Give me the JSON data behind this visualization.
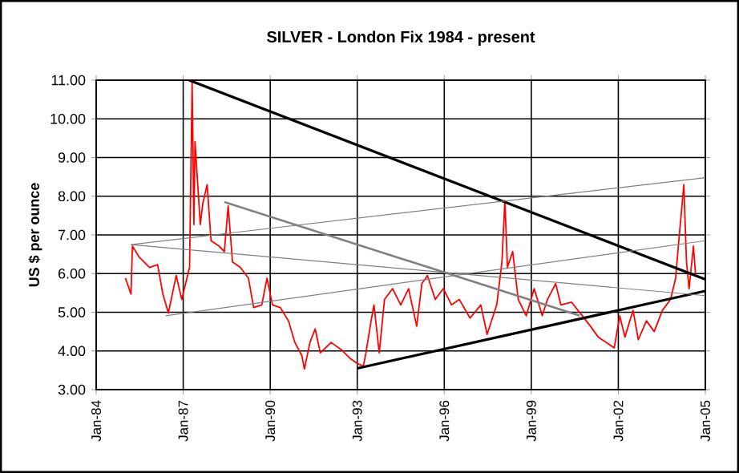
{
  "chart_data": {
    "type": "line",
    "title": "SILVER  -  London Fix  1984  - present",
    "ylabel": "US $ per ounce",
    "xlim": [
      "1984-01",
      "2005-01"
    ],
    "xticks": [
      {
        "value": "1984-01",
        "label": "Jan-84"
      },
      {
        "value": "1987-01",
        "label": "Jan-87"
      },
      {
        "value": "1990-01",
        "label": "Jan-90"
      },
      {
        "value": "1993-01",
        "label": "Jan-93"
      },
      {
        "value": "1996-01",
        "label": "Jan-96"
      },
      {
        "value": "1999-01",
        "label": "Jan-99"
      },
      {
        "value": "2002-01",
        "label": "Jan-02"
      },
      {
        "value": "2005-01",
        "label": "Jan-05"
      }
    ],
    "ylim": [
      3,
      11
    ],
    "yticks": [
      {
        "value": 3,
        "label": "3.00"
      },
      {
        "value": 4,
        "label": "4.00"
      },
      {
        "value": 5,
        "label": "5.00"
      },
      {
        "value": 6,
        "label": "6.00"
      },
      {
        "value": 7,
        "label": "7.00"
      },
      {
        "value": 8,
        "label": "8.00"
      },
      {
        "value": 9,
        "label": "9.00"
      },
      {
        "value": 10,
        "label": "10.00"
      },
      {
        "value": 11,
        "label": "11.00"
      }
    ],
    "grid": true,
    "series": [
      {
        "color": "#ff0000",
        "x": [
          "1985-01-04",
          "1985-03-13",
          "1985-04-01",
          "1985-06-20",
          "1985-11-03",
          "1986-02-14",
          "1986-04-19",
          "1986-06-27",
          "1986-10-04",
          "1986-12-13",
          "1987-03-20",
          "1987-04-22",
          "1987-05-14",
          "1987-05-28",
          "1987-08-03",
          "1987-09-05",
          "1987-10-29",
          "1987-12-16",
          "1988-03-27",
          "1988-06-02",
          "1988-07-19",
          "1988-09-13",
          "1988-12-20",
          "1989-04-01",
          "1989-06-05",
          "1989-09-16",
          "1989-11-21",
          "1990-01-29",
          "1990-05-07",
          "1990-08-17",
          "1990-11-07",
          "1991-02-03",
          "1991-03-05",
          "1991-05-14",
          "1991-07-19",
          "1991-09-23",
          "1992-02-07",
          "1992-06-20",
          "1992-10-01",
          "1993-01-08",
          "1993-03-16",
          "1993-04-19",
          "1993-06-23",
          "1993-07-29",
          "1993-10-04",
          "1993-12-09",
          "1994-03-20",
          "1994-07-01",
          "1994-10-08",
          "1995-01-19",
          "1995-03-23",
          "1995-06-02",
          "1995-09-09",
          "1995-12-20",
          "1996-04-01",
          "1996-07-08",
          "1996-11-21",
          "1997-04-04",
          "1997-06-23",
          "1997-10-22",
          "1997-12-27",
          "1998-02-03",
          "1998-03-05",
          "1998-05-10",
          "1998-07-19",
          "1998-10-29",
          "1999-02-07",
          "1999-05-17",
          "1999-07-22",
          "1999-11-03",
          "2000-01-08",
          "2000-05-21",
          "2000-10-04",
          "2001-01-15",
          "2001-04-22",
          "2001-08-03",
          "2001-11-10",
          "2002-01-19",
          "2002-03-23",
          "2002-07-04",
          "2002-09-09",
          "2002-12-20",
          "2003-03-27",
          "2003-07-08",
          "2003-10-19",
          "2003-12-23",
          "2004-01-26",
          "2004-04-04",
          "2004-05-07",
          "2004-06-09",
          "2004-08-03",
          "2004-08-28"
        ],
        "values": [
          5.88,
          5.47,
          6.71,
          6.44,
          6.16,
          6.23,
          5.47,
          4.98,
          5.95,
          5.33,
          6.16,
          10.93,
          7.27,
          9.41,
          7.27,
          7.82,
          8.3,
          6.85,
          6.71,
          6.57,
          7.75,
          6.3,
          6.16,
          5.88,
          5.12,
          5.19,
          5.88,
          5.19,
          5.12,
          4.78,
          4.22,
          3.88,
          3.53,
          4.22,
          4.57,
          3.95,
          4.22,
          4.02,
          3.81,
          3.67,
          3.6,
          3.95,
          4.78,
          5.19,
          3.95,
          5.33,
          5.61,
          5.19,
          5.61,
          4.64,
          5.74,
          5.95,
          5.33,
          5.61,
          5.19,
          5.33,
          4.85,
          5.19,
          4.43,
          5.19,
          6.3,
          7.89,
          6.16,
          6.57,
          5.33,
          4.91,
          5.61,
          4.91,
          5.33,
          5.74,
          5.19,
          5.26,
          4.91,
          4.64,
          4.36,
          4.22,
          4.08,
          4.91,
          4.36,
          5.05,
          4.29,
          4.78,
          4.5,
          5.05,
          5.33,
          5.88,
          6.71,
          8.3,
          6.3,
          5.61,
          6.71,
          6.02
        ]
      },
      {
        "color": "#000000",
        "x": [
          "1987-03-13",
          "2005-01"
        ],
        "values": [
          11.0,
          5.85
        ]
      },
      {
        "color": "#000000",
        "x": [
          "1993-01",
          "2005-01"
        ],
        "values": [
          3.55,
          5.55
        ]
      },
      {
        "color": "#808080",
        "x": [
          "1988-06-02",
          "2000-09-02"
        ],
        "values": [
          7.85,
          4.91
        ]
      },
      {
        "color": "#808080",
        "x": [
          "1985-03-13",
          "2005-01"
        ],
        "values": [
          6.75,
          8.48
        ]
      },
      {
        "color": "#808080",
        "x": [
          "1985-03-13",
          "2005-01"
        ],
        "values": [
          6.75,
          5.43
        ]
      },
      {
        "color": "#808080",
        "x": [
          "1986-05-25",
          "2005-01"
        ],
        "values": [
          4.91,
          6.85
        ]
      }
    ]
  }
}
